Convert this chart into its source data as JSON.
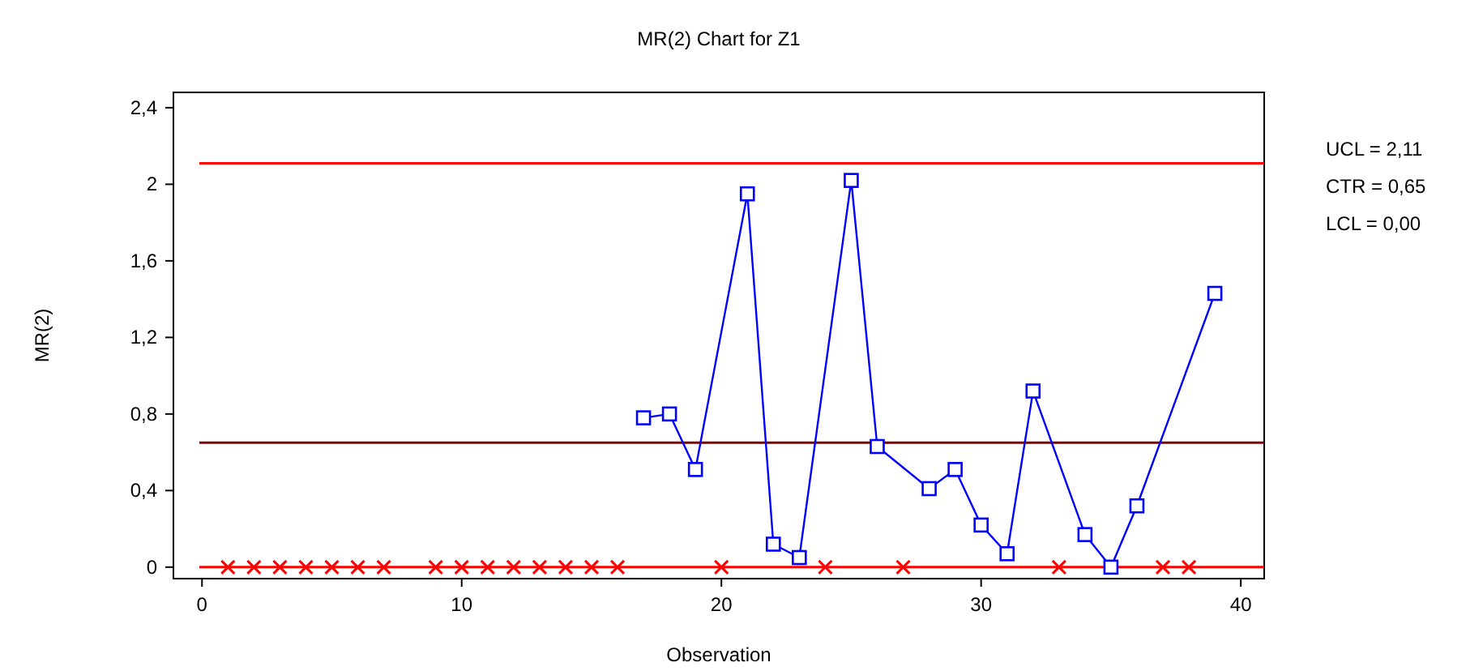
{
  "chart_data": {
    "type": "line",
    "title": "MR(2) Chart for Z1",
    "xlabel": "Observation",
    "ylabel": "MR(2)",
    "xlim": [
      -1.1,
      40.9
    ],
    "xticks": [
      0,
      10,
      20,
      30,
      40
    ],
    "ylim": [
      -0.06,
      2.48
    ],
    "yticks": [
      0,
      {
        "value": 0.4,
        "label": "0,4"
      },
      {
        "value": 0.8,
        "label": "0,8"
      },
      {
        "value": 1.2,
        "label": "1,2"
      },
      {
        "value": 1.6,
        "label": "1,6"
      },
      2,
      {
        "value": 2.4,
        "label": "2,4"
      }
    ],
    "grid": false,
    "annotations": [
      "UCL = 2,11",
      "CTR = 0,65",
      "LCL = 0,00"
    ],
    "series": [
      {
        "color": "#0000ff",
        "marker": "square",
        "line_style": "solid",
        "x": [
          17,
          18,
          19,
          21,
          22,
          23,
          25,
          26,
          28,
          29,
          30,
          31,
          32,
          34,
          35,
          36,
          39
        ],
        "values": [
          0.78,
          0.8,
          0.51,
          1.95,
          0.12,
          0.05,
          2.02,
          0.63,
          0.41,
          0.51,
          0.22,
          0.07,
          0.92,
          0.17,
          0,
          0.32,
          1.43
        ]
      },
      {
        "type": "scatter",
        "color": "#ff0000",
        "marker": "cross",
        "x": [
          1,
          2,
          3,
          4,
          5,
          6,
          7,
          9,
          10,
          11,
          12,
          13,
          14,
          15,
          16,
          20,
          24,
          27,
          33,
          37,
          38
        ],
        "values": [
          0,
          0,
          0,
          0,
          0,
          0,
          0,
          0,
          0,
          0,
          0,
          0,
          0,
          0,
          0,
          0,
          0,
          0,
          0,
          0,
          0
        ]
      }
    ],
    "ref_lines": [
      {
        "axis": "y",
        "value": 2.11,
        "color": "#ff0000"
      },
      {
        "axis": "y",
        "value": 0.65,
        "color": "#800000"
      },
      {
        "axis": "y",
        "value": 0,
        "color": "#ff0000"
      }
    ]
  }
}
